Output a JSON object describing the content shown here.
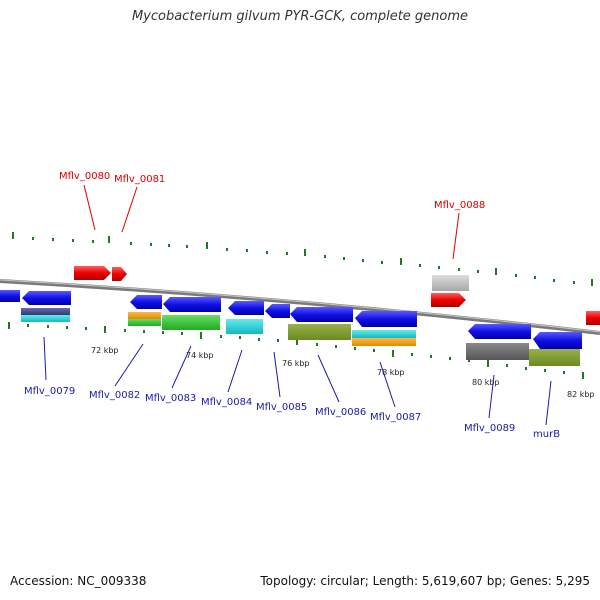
{
  "title": "Mycobacterium gilvum PYR-GCK, complete genome",
  "footer": {
    "accession": "Accession: NC_009338",
    "topology": "Topology: circular; Length: 5,619,607 bp; Genes: 5,295"
  },
  "colors": {
    "label_highlight": "#dd0000",
    "label_normal": "#1a1aaa",
    "backbone": "#8a8a8a",
    "tick": "#1e7a1e"
  },
  "kbp_labels": [
    "72 kbp",
    "74 kbp",
    "76 kbp",
    "78 kbp",
    "80 kbp",
    "82 kbp"
  ],
  "top_labels": [
    "Mflv_0080",
    "Mflv_0081",
    "Mflv_0088"
  ],
  "bottom_labels": [
    "Mflv_0079",
    "Mflv_0082",
    "Mflv_0083",
    "Mflv_0084",
    "Mflv_0085",
    "Mflv_0086",
    "Mflv_0087",
    "Mflv_0089",
    "murB"
  ]
}
